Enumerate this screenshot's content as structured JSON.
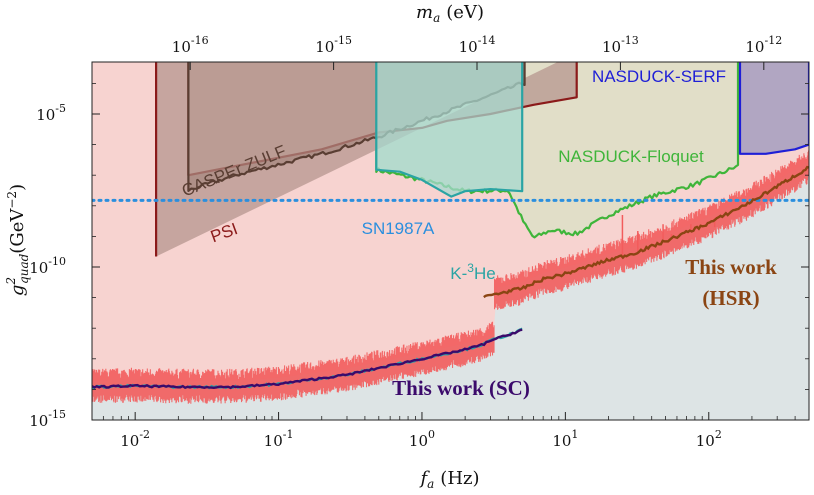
{
  "chart_data": {
    "type": "line",
    "x_axis": {
      "label_symbol": "f",
      "label_sub": "a",
      "label_unit": "(Hz)",
      "scale": "log",
      "range": [
        0.005,
        500
      ],
      "ticks": [
        {
          "value": 0.01,
          "base": "10",
          "exp": "-2"
        },
        {
          "value": 0.1,
          "base": "10",
          "exp": "-1"
        },
        {
          "value": 1,
          "base": "10",
          "exp": "0"
        },
        {
          "value": 10,
          "base": "10",
          "exp": "1"
        },
        {
          "value": 100,
          "base": "10",
          "exp": "2"
        }
      ]
    },
    "top_axis": {
      "label_symbol": "m",
      "label_sub": "a",
      "label_unit": "(eV)",
      "scale": "log",
      "ticks": [
        {
          "freq_hz": 0.0242,
          "base": "10",
          "exp": "-16"
        },
        {
          "freq_hz": 0.242,
          "base": "10",
          "exp": "-15"
        },
        {
          "freq_hz": 2.42,
          "base": "10",
          "exp": "-14"
        },
        {
          "freq_hz": 24.2,
          "base": "10",
          "exp": "-13"
        },
        {
          "freq_hz": 242,
          "base": "10",
          "exp": "-12"
        }
      ]
    },
    "y_axis": {
      "label_symbol": "g",
      "label_sub": "quad",
      "label_sup": "2",
      "label_unit": "(GeV",
      "label_unit_sup": "−2",
      "label_unit_close": ")",
      "scale": "log",
      "range": [
        1e-15,
        0.0005
      ],
      "ticks": [
        {
          "value": 1e-15,
          "base": "10",
          "exp": "-15"
        },
        {
          "value": 1e-10,
          "base": "10",
          "exp": "-10"
        },
        {
          "value": 1e-05,
          "base": "10",
          "exp": "-5"
        }
      ]
    },
    "colors": {
      "background": "#dde4e5",
      "psi_fill": "#b6968f",
      "psi_line": "#8b1a1a",
      "zulf_fill": "#a78a80",
      "zulf_line": "#5a3e33",
      "k3he_fill": "#a6d8cf",
      "k3he_line": "#2aa4a4",
      "floquet_fill": "#d9e2c6",
      "floquet_line": "#3fb53a",
      "serf_fill": "#9a97bd",
      "serf_line": "#1f1fd6",
      "sn_line": "#2b8fde",
      "hsr_band": "#f25c5c",
      "hsr_fill": "#fbd0cd",
      "hsr_line": "#8b4513",
      "sc_line": "#3b0a6b",
      "sc_line2": "#2aa4a4"
    },
    "series": [
      {
        "name": "PSI",
        "type": "region",
        "points": [
          [
            0.014,
            2.2e-10
          ],
          [
            0.014,
            0.001
          ],
          [
            0.0235,
            0.001
          ],
          [
            0.0235,
            1e-07
          ],
          [
            0.2,
            7e-07
          ],
          [
            0.5,
            2.5e-06
          ],
          [
            1,
            3.5e-06
          ],
          [
            1.5,
            6e-06
          ],
          [
            3,
            1e-05
          ],
          [
            6,
            2e-05
          ],
          [
            12,
            3.5e-05
          ],
          [
            12,
            0.001
          ]
        ]
      },
      {
        "name": "CASPEr ZULF",
        "type": "region",
        "points": [
          [
            0.0235,
            0.001
          ],
          [
            0.0235,
            3.2e-08
          ],
          [
            0.05,
            1e-07
          ],
          [
            0.2,
            5e-07
          ],
          [
            0.5,
            1.8e-06
          ],
          [
            1,
            6e-06
          ],
          [
            2,
            2e-05
          ],
          [
            5,
            0.0001
          ],
          [
            5.2,
            0.001
          ]
        ]
      },
      {
        "name": "K-3He",
        "type": "region",
        "points": [
          [
            0.48,
            0.001
          ],
          [
            0.48,
            1.5e-07
          ],
          [
            0.7,
            1.3e-07
          ],
          [
            1,
            7e-08
          ],
          [
            1.6,
            2e-08
          ],
          [
            2,
            3e-08
          ],
          [
            3,
            3.5e-08
          ],
          [
            5,
            3e-08
          ],
          [
            5,
            0.001
          ]
        ]
      },
      {
        "name": "NASDUCK-Floquet",
        "type": "region",
        "points": [
          [
            0.48,
            0.001
          ],
          [
            0.48,
            1.5e-07
          ],
          [
            1,
            7e-08
          ],
          [
            2,
            3e-08
          ],
          [
            4,
            3.2e-08
          ],
          [
            5.2,
            2.5e-09
          ],
          [
            6,
            9e-10
          ],
          [
            8,
            1.6e-09
          ],
          [
            12,
            1.2e-09
          ],
          [
            20,
            5e-09
          ],
          [
            40,
            2e-08
          ],
          [
            80,
            5e-08
          ],
          [
            160,
            2e-07
          ],
          [
            160,
            0.001
          ]
        ]
      },
      {
        "name": "NASDUCK-SERF",
        "type": "region",
        "points": [
          [
            165,
            0.001
          ],
          [
            165,
            5e-07
          ],
          [
            250,
            5e-07
          ],
          [
            400,
            7e-07
          ],
          [
            500,
            1e-06
          ],
          [
            500,
            0.001
          ]
        ]
      },
      {
        "name": "SN1987A",
        "type": "hline",
        "value": 1.5e-08
      },
      {
        "name": "This work (HSR)",
        "type": "line",
        "points": [
          [
            2.7,
            1e-11
          ],
          [
            3,
            1.2e-11
          ],
          [
            4,
            1.6e-11
          ],
          [
            5,
            2e-11
          ],
          [
            7,
            4e-11
          ],
          [
            10,
            6e-11
          ],
          [
            15,
            1.1e-10
          ],
          [
            20,
            1.7e-10
          ],
          [
            30,
            2.8e-10
          ],
          [
            50,
            7e-10
          ],
          [
            100,
            2.7e-09
          ],
          [
            200,
            1.4e-08
          ],
          [
            500,
            1.8e-07
          ]
        ]
      },
      {
        "name": "This work (SC)",
        "type": "line",
        "points": [
          [
            0.005,
            1.2e-14
          ],
          [
            0.01,
            1.3e-14
          ],
          [
            0.02,
            1.2e-14
          ],
          [
            0.05,
            1.2e-14
          ],
          [
            0.1,
            1.5e-14
          ],
          [
            0.3,
            3e-14
          ],
          [
            0.5,
            5e-14
          ],
          [
            1,
            1e-13
          ],
          [
            1.5,
            1.5e-13
          ],
          [
            2,
            2e-13
          ],
          [
            2.7,
            3e-13
          ],
          [
            3,
            4e-13
          ],
          [
            4,
            6e-13
          ],
          [
            5,
            9e-13
          ]
        ]
      }
    ],
    "annotations": [
      {
        "text": "CASPEr ZULF",
        "role": "label"
      },
      {
        "text": "PSI",
        "role": "label"
      },
      {
        "text": "SN1987A",
        "role": "label"
      },
      {
        "text": "K-",
        "sup": "3",
        "tail": "He",
        "role": "label"
      },
      {
        "text": "NASDUCK-Floquet",
        "role": "label"
      },
      {
        "text": "NASDUCK-SERF",
        "role": "label"
      },
      {
        "text": "This work (SC)",
        "role": "label"
      },
      {
        "text": "This work",
        "line2": "(HSR)",
        "role": "label"
      }
    ]
  }
}
